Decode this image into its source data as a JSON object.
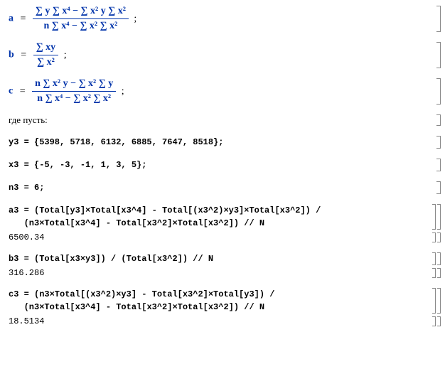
{
  "cells": {
    "a_formula": {
      "lhs": "a",
      "num": "∑ y ∑ x⁴ − ∑ x² y ∑ x²",
      "den": "n ∑ x⁴ − ∑ x² ∑ x²",
      "trailer": ";"
    },
    "b_formula": {
      "lhs": "b",
      "num": "∑ xy",
      "den": "∑ x²",
      "trailer": ";"
    },
    "c_formula": {
      "lhs": "c",
      "num": "n ∑ x² y − ∑ x² ∑ y",
      "den": "n ∑ x⁴ − ∑ x² ∑ x²",
      "trailer": ";"
    },
    "let_text": "где пусть:",
    "y3_def": "y3 = {5398, 5718, 6132, 6885, 7647, 8518};",
    "x3_def": "x3 = {-5, -3, -1, 1, 3, 5};",
    "n3_def": "n3 = 6;",
    "a3_code": "a3 = (Total[y3]×Total[x3^4] - Total[(x3^2)×y3]×Total[x3^2]) /\n   (n3×Total[x3^4] - Total[x3^2]×Total[x3^2]) // N",
    "a3_out": "6500.34",
    "b3_code": "b3 = (Total[x3×y3]) / (Total[x3^2]) // N",
    "b3_out": "316.286",
    "c3_code": "c3 = (n3×Total[(x3^2)×y3] - Total[x3^2]×Total[y3]) /\n   (n3×Total[x3^4] - Total[x3^2]×Total[x3^2]) // N",
    "c3_out": "18.5134"
  },
  "style": {
    "formula_color": "#0033aa",
    "text_color": "#000000",
    "bracket_color": "#888888",
    "background": "#ffffff"
  }
}
